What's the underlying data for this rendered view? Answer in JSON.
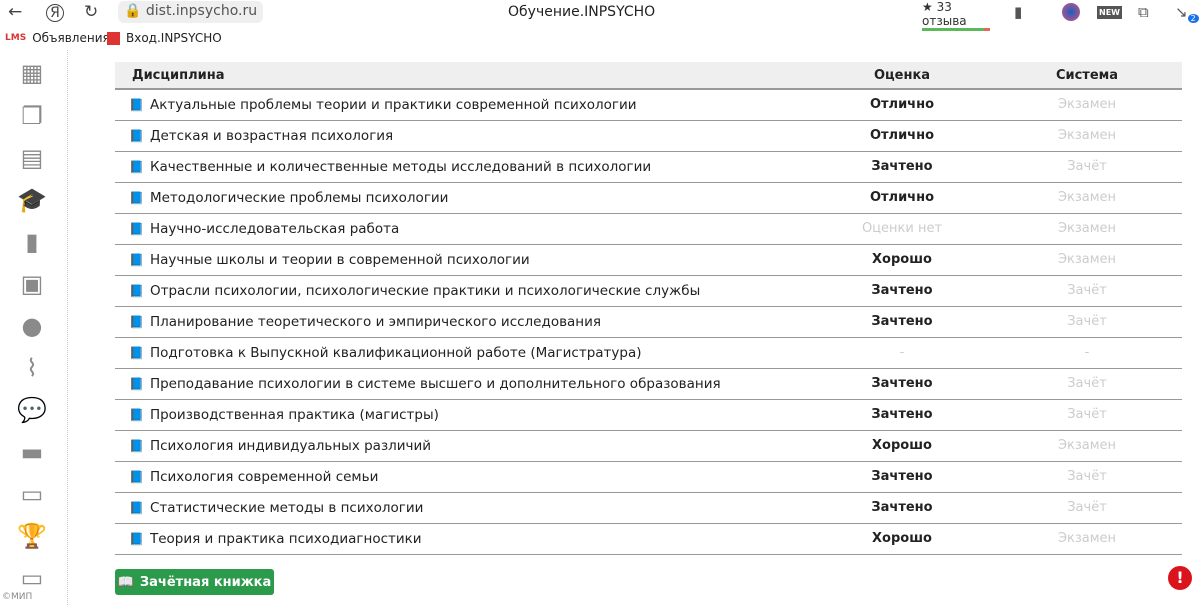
{
  "browser": {
    "url": "dist.inpsycho.ru",
    "title": "Обучение.INPSYCHO",
    "reviews": "33 отзыва",
    "downloads_badge": "2",
    "bookmarks": [
      {
        "icon": "lms-icon",
        "label": "Объявления"
      },
      {
        "icon": "inpsycho-icon",
        "label": "Вход.INPSYCHO"
      }
    ]
  },
  "sidebar": {
    "items": [
      "grid-icon",
      "documents-icon",
      "calendar-icon",
      "graduation-cap-icon",
      "bookmark-icon",
      "video-file-icon",
      "users-icon",
      "paperclip-icon",
      "comments-icon",
      "folder-icon",
      "archive-icon",
      "trophy-icon",
      "credit-card-icon"
    ],
    "active": "graduation-cap-icon",
    "copyright": "©МИП"
  },
  "table": {
    "headers": {
      "discipline": "Дисциплина",
      "grade": "Оценка",
      "system": "Система"
    },
    "rows": [
      {
        "discipline": "Актуальные проблемы теории и практики современной психологии",
        "grade": "Отлично",
        "system": "Экзамен"
      },
      {
        "discipline": "Детская и возрастная психология",
        "grade": "Отлично",
        "system": "Экзамен"
      },
      {
        "discipline": "Качественные и количественные методы исследований в психологии",
        "grade": "Зачтено",
        "system": "Зачёт"
      },
      {
        "discipline": "Методологические проблемы психологии",
        "grade": "Отлично",
        "system": "Экзамен"
      },
      {
        "discipline": "Научно-исследовательская работа",
        "grade": "Оценки нет",
        "system": "Экзамен"
      },
      {
        "discipline": "Научные школы и теории в современной психологии",
        "grade": "Хорошо",
        "system": "Экзамен"
      },
      {
        "discipline": "Отрасли психологии, психологические практики и психологические службы",
        "grade": "Зачтено",
        "system": "Зачёт"
      },
      {
        "discipline": "Планирование теоретического и эмпирического исследования",
        "grade": "Зачтено",
        "system": "Зачёт"
      },
      {
        "discipline": "Подготовка к Выпускной квалификационной работе (Магистратура)",
        "grade": "-",
        "system": "-"
      },
      {
        "discipline": "Преподавание психологии в системе высшего и дополнительного образования",
        "grade": "Зачтено",
        "system": "Зачёт"
      },
      {
        "discipline": "Производственная практика (магистры)",
        "grade": "Зачтено",
        "system": "Зачёт"
      },
      {
        "discipline": "Психология индивидуальных различий",
        "grade": "Хорошо",
        "system": "Экзамен"
      },
      {
        "discipline": "Психология современной семьи",
        "grade": "Зачтено",
        "system": "Зачёт"
      },
      {
        "discipline": "Статистические методы в психологии",
        "grade": "Зачтено",
        "system": "Зачёт"
      },
      {
        "discipline": "Теория и практика психодиагностики",
        "grade": "Хорошо",
        "system": "Экзамен"
      }
    ]
  },
  "gradebook_button": "Зачётная книжка",
  "alert_icon": "!",
  "colors": {
    "button": "#2c9a4b",
    "alert": "#d9141c",
    "muted": "#cccccc"
  }
}
